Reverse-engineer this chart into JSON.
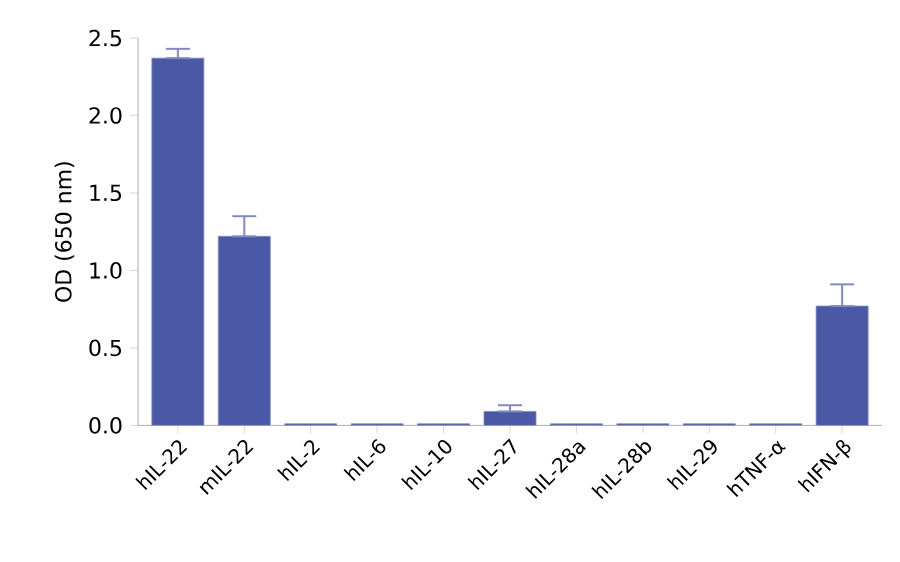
{
  "chart_data": {
    "type": "bar",
    "ylabel": "OD (650 nm)",
    "categories": [
      "hIL-22",
      "mIL-22",
      "hIL-2",
      "hIL-6",
      "hIL-10",
      "hIL-27",
      "hIL-28a",
      "hIL-28b",
      "hIL-29",
      "hTNF-α",
      "hIFN-β"
    ],
    "values": [
      2.37,
      1.22,
      0.01,
      0.01,
      0.01,
      0.09,
      0.01,
      0.01,
      0.01,
      0.01,
      0.77
    ],
    "errors": [
      [
        2.37,
        2.43
      ],
      [
        1.22,
        1.35
      ],
      null,
      null,
      null,
      [
        0.09,
        0.13
      ],
      null,
      null,
      null,
      null,
      [
        0.77,
        0.91
      ]
    ],
    "color": "#4a58a5",
    "ylim": [
      0,
      2.5
    ],
    "yticks": [
      {
        "value": 0,
        "label": "0.0"
      },
      0.5,
      {
        "value": 1,
        "label": "1.0"
      },
      1.5,
      {
        "value": 2,
        "label": "2.0"
      },
      2.5
    ],
    "grid": false
  }
}
